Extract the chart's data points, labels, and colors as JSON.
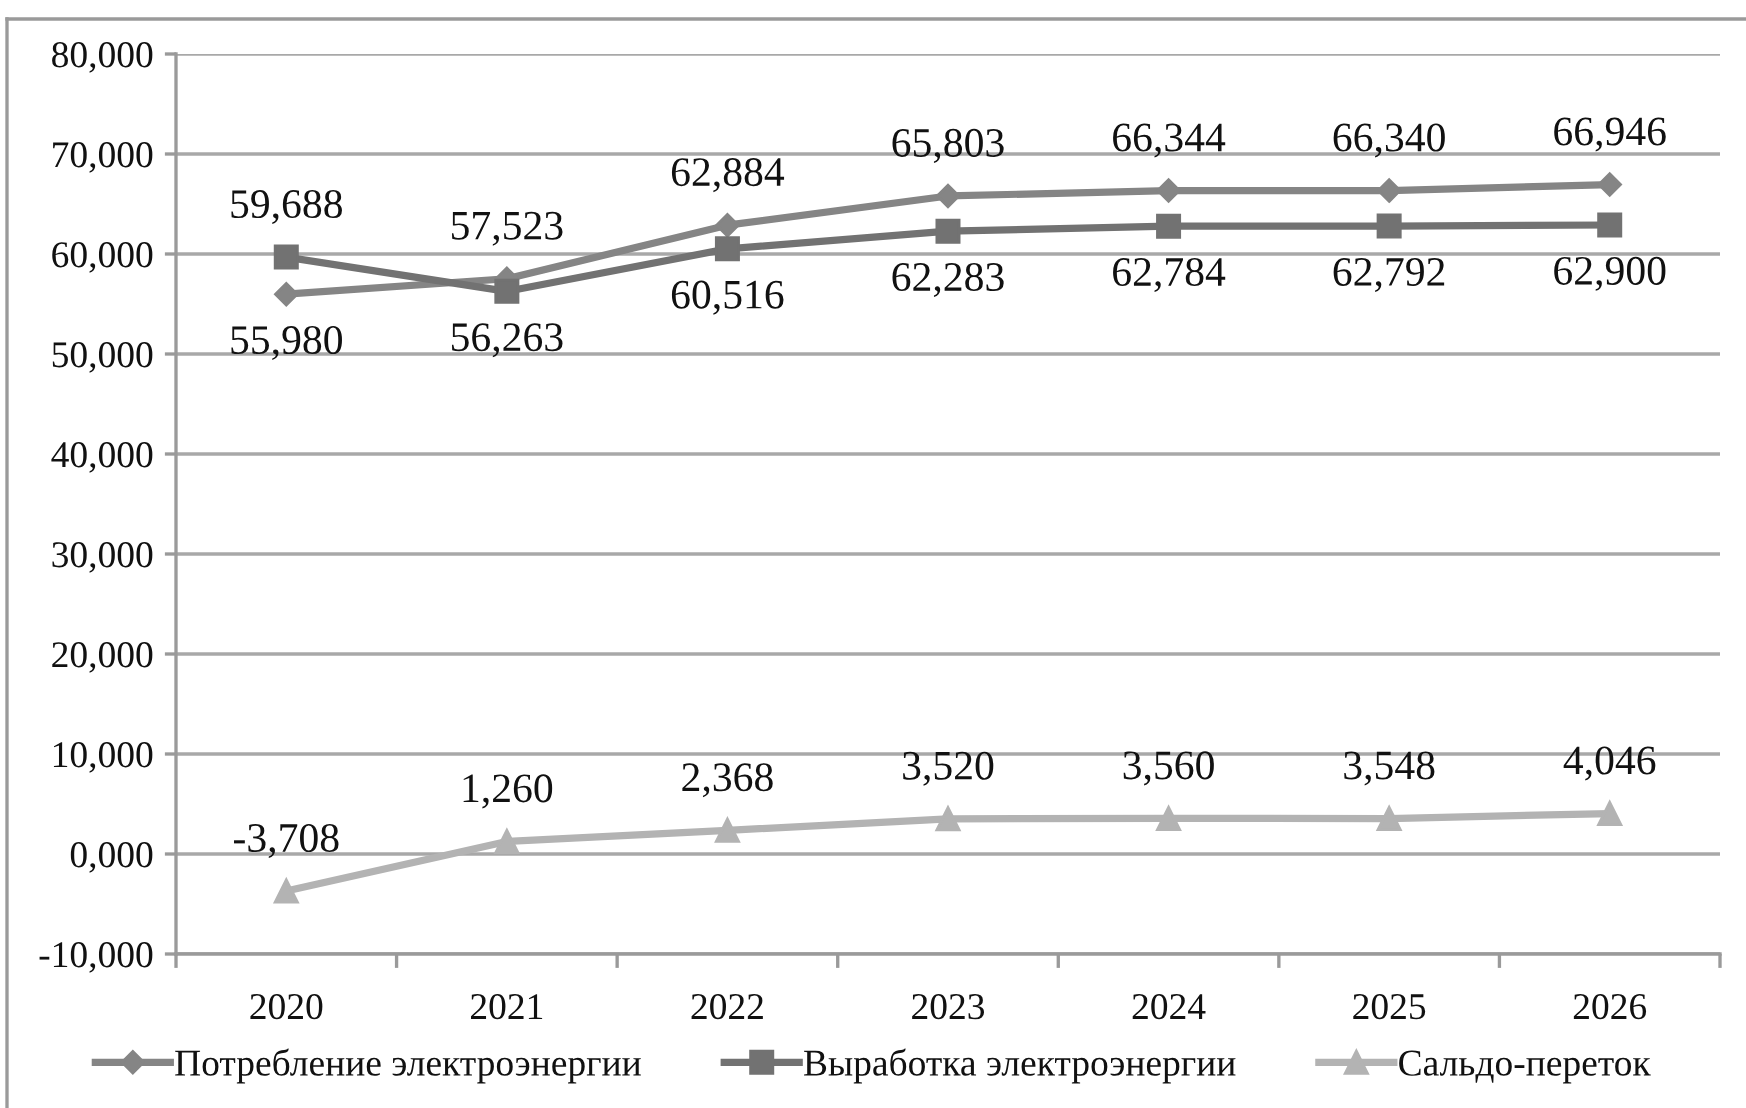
{
  "chart_data": {
    "type": "line",
    "categories": [
      "2020",
      "2021",
      "2022",
      "2023",
      "2024",
      "2025",
      "2026"
    ],
    "series": [
      {
        "name": "Потребление электроэнергии",
        "color": "#858585",
        "marker": "diamond",
        "values": [
          55980,
          57523,
          62884,
          65803,
          66344,
          66340,
          66946
        ],
        "value_labels": [
          "55,980",
          "57,523",
          "62,884",
          "65,803",
          "66,344",
          "66,340",
          "66,946"
        ]
      },
      {
        "name": "Выработка электроэнергии",
        "color": "#727272",
        "marker": "square",
        "values": [
          59688,
          56263,
          60516,
          62283,
          62784,
          62792,
          62900
        ],
        "value_labels": [
          "59,688",
          "56,263",
          "60,516",
          "62,283",
          "62,784",
          "62,792",
          "62,900"
        ]
      },
      {
        "name": "Сальдо-переток",
        "color": "#b3b3b3",
        "marker": "triangle",
        "values": [
          -3708,
          1260,
          2368,
          3520,
          3560,
          3548,
          4046
        ],
        "value_labels": [
          "-3,708",
          "1,260",
          "2,368",
          "3,520",
          "3,560",
          "3,548",
          "4,046"
        ]
      }
    ],
    "ylim": [
      -10000,
      80000
    ],
    "yticks": [
      {
        "value": -10000,
        "label": "-10,000"
      },
      {
        "value": 0,
        "label": "0,000"
      },
      {
        "value": 10000,
        "label": "10,000"
      },
      {
        "value": 20000,
        "label": "20,000"
      },
      {
        "value": 30000,
        "label": "30,000"
      },
      {
        "value": 40000,
        "label": "40,000"
      },
      {
        "value": 50000,
        "label": "50,000"
      },
      {
        "value": 60000,
        "label": "60,000"
      },
      {
        "value": 70000,
        "label": "70,000"
      },
      {
        "value": 80000,
        "label": "80,000"
      }
    ],
    "grid": "y",
    "legend": "bottom",
    "line_style": "solid"
  }
}
